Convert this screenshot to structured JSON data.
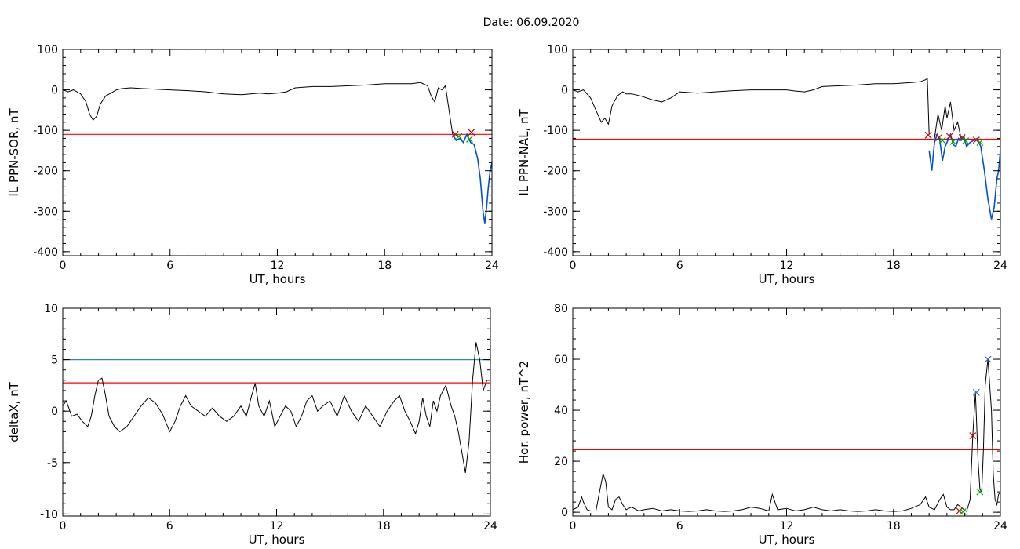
{
  "figure": {
    "title": "Date:  06.09.2020"
  },
  "chart_data": [
    {
      "type": "line",
      "id": "p1",
      "title": "",
      "xlabel": "UT, hours",
      "ylabel": "IL PPN-SOR, nT",
      "xlim": [
        0,
        24
      ],
      "ylim": [
        -410,
        100
      ],
      "xticks": [
        0,
        6,
        12,
        18,
        24
      ],
      "yticks": [
        100,
        0,
        -100,
        -200,
        -300,
        -400
      ],
      "grid": false,
      "series": [
        {
          "color": "#000000",
          "x": [
            0,
            0.3,
            0.6,
            1.0,
            1.3,
            1.5,
            1.7,
            1.9,
            2.1,
            2.4,
            2.7,
            3.0,
            3.3,
            3.8,
            4.5,
            5.0,
            6.0,
            7.0,
            8.0,
            9.0,
            10.0,
            11.0,
            11.5,
            12.0,
            12.5,
            13.0,
            14.0,
            15.0,
            16.0,
            17.0,
            18.0,
            19.0,
            19.5,
            20.0,
            20.4,
            20.6,
            20.8,
            21.0,
            21.2,
            21.4,
            21.6,
            21.8
          ],
          "y": [
            0,
            -5,
            0,
            -10,
            -30,
            -60,
            -75,
            -65,
            -35,
            -15,
            -8,
            0,
            3,
            5,
            3,
            2,
            0,
            -2,
            -5,
            -10,
            -12,
            -8,
            -10,
            -8,
            -5,
            5,
            8,
            8,
            10,
            12,
            15,
            15,
            15,
            18,
            10,
            -15,
            -30,
            5,
            0,
            10,
            -50,
            -110
          ]
        },
        {
          "color": "#0050dc",
          "x": [
            21.8,
            22.0,
            22.2,
            22.4,
            22.6,
            22.8,
            23.0,
            23.2,
            23.35,
            23.5,
            23.6,
            23.7,
            23.8,
            23.9,
            24.0
          ],
          "y": [
            -110,
            -125,
            -120,
            -130,
            -110,
            -130,
            -135,
            -170,
            -220,
            -300,
            -330,
            -290,
            -240,
            -200,
            -180
          ]
        }
      ],
      "reference_lines": [
        {
          "y": -110,
          "color": "#ff0000"
        }
      ],
      "markers": [
        {
          "x": 21.95,
          "y": -110,
          "color": "#cc0000"
        },
        {
          "x": 22.15,
          "y": -115,
          "color": "#00aa00"
        },
        {
          "x": 22.85,
          "y": -105,
          "color": "#cc0000"
        },
        {
          "x": 22.75,
          "y": -122,
          "color": "#00aa00"
        }
      ]
    },
    {
      "type": "line",
      "id": "p2",
      "title": "",
      "xlabel": "UT, hours",
      "ylabel": "IL PPN-NAL, nT",
      "xlim": [
        0,
        24
      ],
      "ylim": [
        -410,
        100
      ],
      "xticks": [
        0,
        6,
        12,
        18,
        24
      ],
      "yticks": [
        100,
        0,
        -100,
        -200,
        -300,
        -400
      ],
      "grid": false,
      "series": [
        {
          "color": "#000000",
          "x": [
            0,
            0.3,
            0.6,
            1.0,
            1.3,
            1.6,
            1.8,
            2.0,
            2.2,
            2.5,
            2.8,
            3.0,
            3.3,
            3.8,
            4.5,
            5.0,
            5.5,
            6.0,
            7.0,
            8.0,
            9.0,
            10.0,
            11.0,
            12.0,
            12.5,
            13.0,
            13.5,
            14.0,
            15.0,
            16.0,
            17.0,
            18.0,
            19.0,
            19.5,
            19.8,
            19.9,
            20.0
          ],
          "y": [
            0,
            -5,
            0,
            -20,
            -50,
            -80,
            -70,
            -85,
            -40,
            -15,
            -5,
            -10,
            -10,
            -15,
            -25,
            -30,
            -20,
            -5,
            -8,
            -5,
            -2,
            0,
            0,
            0,
            -3,
            -5,
            0,
            8,
            10,
            12,
            15,
            15,
            18,
            20,
            25,
            28,
            -110
          ]
        },
        {
          "color": "#0050dc",
          "x": [
            20.0,
            20.15,
            20.3,
            20.45,
            20.6,
            20.75,
            20.9,
            21.05,
            21.2,
            21.35,
            21.5,
            21.65,
            21.8,
            21.95,
            22.1,
            22.3,
            22.5,
            22.7,
            22.9,
            23.1,
            23.3,
            23.5,
            23.65,
            23.8,
            23.9,
            24.0
          ],
          "y": [
            -150,
            -200,
            -130,
            -110,
            -125,
            -175,
            -140,
            -125,
            -110,
            -135,
            -140,
            -120,
            -125,
            -115,
            -140,
            -130,
            -125,
            -120,
            -140,
            -200,
            -270,
            -320,
            -290,
            -220,
            -200,
            -150
          ]
        },
        {
          "color": "#000000",
          "x": [
            20.3,
            20.5,
            20.7,
            20.9,
            21.0,
            21.2,
            21.4,
            21.6,
            21.8
          ],
          "y": [
            -120,
            -60,
            -100,
            -40,
            -70,
            -30,
            -100,
            -80,
            -120
          ]
        }
      ],
      "reference_lines": [
        {
          "y": -122,
          "color": "#ff0000"
        }
      ],
      "markers": [
        {
          "x": 19.95,
          "y": -112,
          "color": "#cc0000"
        },
        {
          "x": 20.55,
          "y": -118,
          "color": "#cc0000"
        },
        {
          "x": 20.75,
          "y": -125,
          "color": "#00aa00"
        },
        {
          "x": 21.15,
          "y": -115,
          "color": "#cc0000"
        },
        {
          "x": 21.35,
          "y": -128,
          "color": "#00aa00"
        },
        {
          "x": 21.85,
          "y": -118,
          "color": "#cc0000"
        },
        {
          "x": 22.05,
          "y": -126,
          "color": "#00aa00"
        },
        {
          "x": 22.65,
          "y": -124,
          "color": "#cc0000"
        },
        {
          "x": 22.85,
          "y": -130,
          "color": "#00aa00"
        }
      ]
    },
    {
      "type": "line",
      "id": "p3",
      "title": "",
      "xlabel": "UT, hours",
      "ylabel": "deltaX, nT",
      "xlim": [
        0,
        24
      ],
      "ylim": [
        -10.2,
        10
      ],
      "xticks": [
        0,
        6,
        12,
        18,
        24
      ],
      "yticks": [
        10,
        5,
        0,
        -5,
        -10
      ],
      "grid": false,
      "series": [
        {
          "color": "#000000",
          "x": [
            0,
            0.2,
            0.5,
            0.8,
            1.1,
            1.4,
            1.6,
            1.8,
            2.0,
            2.2,
            2.4,
            2.6,
            2.9,
            3.2,
            3.6,
            4.0,
            4.4,
            4.8,
            5.2,
            5.6,
            6.0,
            6.3,
            6.6,
            6.9,
            7.2,
            7.6,
            8.0,
            8.4,
            8.8,
            9.2,
            9.6,
            10.0,
            10.3,
            10.6,
            10.8,
            11.0,
            11.3,
            11.6,
            11.9,
            12.2,
            12.5,
            12.8,
            13.1,
            13.4,
            13.7,
            14.0,
            14.3,
            14.6,
            15.0,
            15.4,
            15.8,
            16.2,
            16.6,
            17.0,
            17.4,
            17.8,
            18.2,
            18.6,
            18.9,
            19.2,
            19.5,
            19.8,
            20.0,
            20.2,
            20.4,
            20.6,
            20.8,
            21.0,
            21.2,
            21.5,
            21.8,
            22.0,
            22.2,
            22.4,
            22.6,
            22.8,
            23.0,
            23.2,
            23.4,
            23.6,
            23.8,
            24.0
          ],
          "y": [
            0.5,
            1,
            -0.5,
            -0.3,
            -1,
            -1.5,
            -0.5,
            1.5,
            3,
            3.2,
            1.5,
            -0.5,
            -1.5,
            -2,
            -1.5,
            -0.5,
            0.5,
            1.3,
            0.8,
            -0.3,
            -2,
            -1,
            0.5,
            1.5,
            0.5,
            0,
            -0.5,
            0.3,
            -0.5,
            -1,
            -0.5,
            0.5,
            -0.5,
            1.5,
            2.7,
            0.5,
            -0.5,
            1,
            -1.5,
            -0.5,
            0.5,
            0,
            -1.5,
            -0.5,
            1,
            1.5,
            0,
            0.5,
            1,
            -0.5,
            1.5,
            0,
            -1,
            0.5,
            -0.5,
            -1.5,
            0,
            1,
            1.5,
            0,
            -1,
            -2.2,
            -1,
            1.3,
            -0.5,
            -1.5,
            1,
            0,
            1.5,
            2.5,
            0.5,
            -0.5,
            -2,
            -4,
            -6,
            -3,
            3,
            6.7,
            5,
            2,
            3,
            3
          ]
        }
      ],
      "reference_lines": [
        {
          "y": 5.0,
          "color": "#2a8ea0"
        },
        {
          "y": 2.75,
          "color": "#ff0000"
        }
      ],
      "markers": []
    },
    {
      "type": "line",
      "id": "p4",
      "title": "",
      "xlabel": "UT, hours",
      "ylabel": "Hor. power, nT^2",
      "xlim": [
        0,
        24
      ],
      "ylim": [
        -1.5,
        80
      ],
      "xticks": [
        0,
        6,
        12,
        18,
        24
      ],
      "yticks": [
        80,
        60,
        40,
        20,
        0
      ],
      "grid": false,
      "series": [
        {
          "color": "#000000",
          "x": [
            0,
            0.3,
            0.5,
            0.6,
            0.8,
            1.0,
            1.3,
            1.5,
            1.7,
            1.85,
            2.0,
            2.2,
            2.4,
            2.6,
            2.8,
            3.0,
            3.3,
            3.7,
            4.0,
            4.5,
            5.0,
            5.5,
            6.0,
            6.5,
            7.0,
            7.5,
            8.0,
            8.5,
            9.0,
            9.5,
            10.0,
            10.5,
            11.0,
            11.2,
            11.5,
            12.0,
            12.5,
            13.0,
            13.5,
            14.0,
            14.5,
            15.0,
            15.5,
            16.0,
            16.5,
            17.0,
            17.5,
            18.0,
            18.5,
            19.0,
            19.5,
            19.8,
            20.0,
            20.3,
            20.6,
            20.8,
            21.0,
            21.2,
            21.4,
            21.6,
            21.8,
            21.95,
            22.1,
            22.3,
            22.45,
            22.6,
            22.75,
            22.85,
            22.95,
            23.05,
            23.15,
            23.3,
            23.5,
            23.6,
            23.7,
            23.8,
            23.9,
            24.0
          ],
          "y": [
            1,
            2,
            6,
            4,
            1,
            0.5,
            0.5,
            8,
            15,
            12,
            2,
            1,
            5,
            6,
            3,
            1,
            2,
            0.5,
            1,
            1.5,
            0.5,
            1,
            0.5,
            0.3,
            0.5,
            1,
            0.5,
            0.3,
            0.5,
            1,
            2,
            1.5,
            0.5,
            7,
            1,
            1.5,
            0.5,
            1,
            2,
            1,
            0.5,
            1,
            0.5,
            0.3,
            0.5,
            1,
            0.5,
            0.3,
            0.5,
            1.5,
            3,
            6,
            2,
            1,
            5,
            7,
            2,
            1,
            1,
            3,
            2,
            1,
            0.3,
            5,
            30,
            47,
            20,
            9,
            8,
            25,
            50,
            60,
            40,
            15,
            5,
            3,
            7,
            8
          ]
        }
      ],
      "reference_lines": [
        {
          "y": 24.5,
          "color": "#ff0000"
        }
      ],
      "markers": [
        {
          "x": 22.45,
          "y": 30,
          "color": "#cc0000"
        },
        {
          "x": 22.65,
          "y": 47,
          "color": "#2a6ad0"
        },
        {
          "x": 23.3,
          "y": 60,
          "color": "#2a6ad0"
        },
        {
          "x": 22.85,
          "y": 8,
          "color": "#00aa00"
        },
        {
          "x": 21.7,
          "y": 0.5,
          "color": "#cc0000"
        },
        {
          "x": 21.9,
          "y": 0.2,
          "color": "#00aa00"
        }
      ]
    }
  ]
}
